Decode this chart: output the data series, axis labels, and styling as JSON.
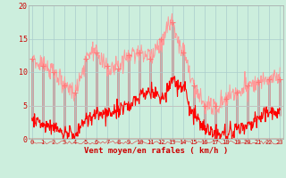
{
  "bg_color": "#cceedd",
  "grid_color": "#aacccc",
  "line_color_avg": "#ff0000",
  "line_color_gust": "#ff9999",
  "bar_color": "#ddbbbb",
  "marker_color": "#ff7777",
  "xlabel": "Vent moyen/en rafales ( km/h )",
  "xlabel_color": "#cc0000",
  "tick_color": "#cc0000",
  "ylim": [
    0,
    20
  ],
  "yticks": [
    0,
    5,
    10,
    15,
    20
  ],
  "xticks": [
    0,
    1,
    2,
    3,
    4,
    5,
    6,
    7,
    8,
    9,
    10,
    11,
    12,
    13,
    14,
    15,
    16,
    17,
    18,
    19,
    20,
    21,
    22,
    23
  ],
  "avg_wind": [
    3.0,
    2.0,
    1.5,
    1.0,
    0.5,
    3.0,
    4.0,
    3.5,
    4.5,
    5.0,
    6.5,
    7.0,
    6.0,
    8.5,
    8.0,
    3.5,
    1.5,
    1.0,
    1.0,
    1.5,
    2.0,
    3.0,
    4.0,
    3.5
  ],
  "gust_wind": [
    12.0,
    11.0,
    10.0,
    8.0,
    7.0,
    12.0,
    13.0,
    11.0,
    10.5,
    12.5,
    13.0,
    12.0,
    15.0,
    17.5,
    13.0,
    8.0,
    5.0,
    5.0,
    6.0,
    7.0,
    8.0,
    8.5,
    9.0,
    9.0
  ],
  "seed": 42
}
